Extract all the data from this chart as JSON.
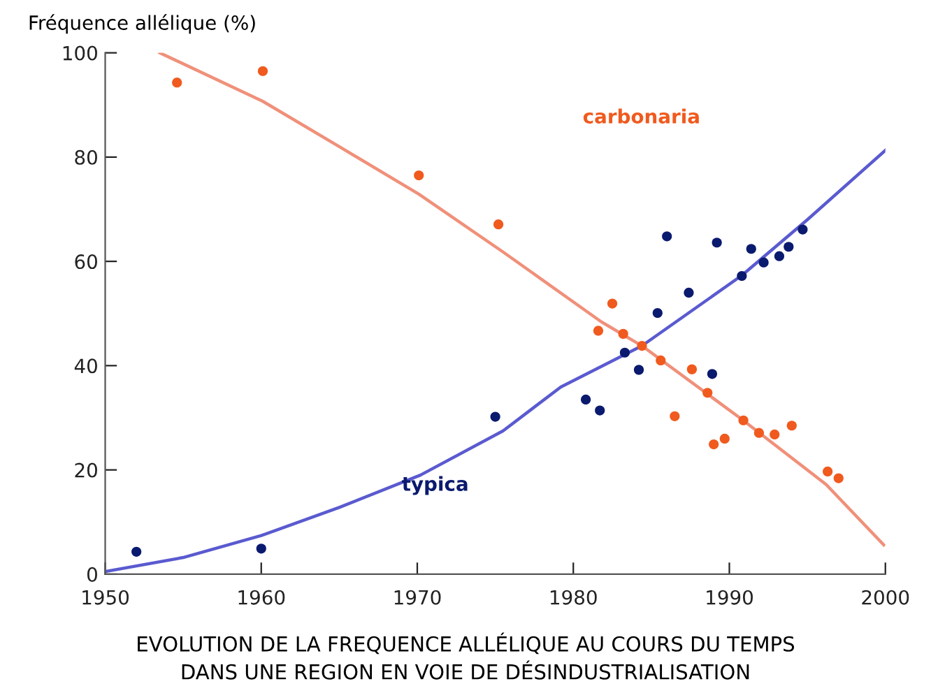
{
  "chart_data": {
    "type": "scatter",
    "title": "EVOLUTION DE LA FREQUENCE ALLÉLIQUE AU COURS DU TEMPS",
    "subtitle": "DANS UNE REGION EN VOIE DE DÉSINDUSTRIALISATION",
    "ylabel": "Fréquence allélique (%)",
    "xlim": [
      1950,
      2000
    ],
    "ylim": [
      0,
      100
    ],
    "xticks": [
      1950,
      1960,
      1970,
      1980,
      1990,
      2000
    ],
    "yticks": [
      0,
      20,
      40,
      60,
      80,
      100
    ],
    "grid": false,
    "legend": false,
    "series": [
      {
        "name": "carbonaria",
        "marker": "circle",
        "color": "#f05a1e",
        "x": [
          1954.6,
          1960.1,
          1970.1,
          1975.2,
          1981.6,
          1982.5,
          1983.2,
          1984.4,
          1985.6,
          1986.5,
          1987.6,
          1988.6,
          1989.0,
          1989.7,
          1990.9,
          1991.9,
          1992.9,
          1994.0,
          1996.3,
          1997.0
        ],
        "values": [
          94.3,
          96.5,
          76.5,
          67.1,
          46.7,
          51.9,
          46.1,
          43.8,
          41.0,
          30.3,
          39.3,
          34.8,
          24.9,
          26.0,
          29.5,
          27.1,
          26.8,
          28.5,
          19.7,
          18.4
        ]
      },
      {
        "name": "typica",
        "marker": "circle",
        "color": "#0a1a6e",
        "x": [
          1952.0,
          1960.0,
          1975.0,
          1980.8,
          1981.7,
          1983.3,
          1984.2,
          1985.4,
          1986.0,
          1987.4,
          1988.9,
          1989.2,
          1990.8,
          1991.4,
          1992.2,
          1993.2,
          1993.8,
          1994.7
        ],
        "values": [
          4.3,
          4.9,
          30.2,
          33.5,
          31.4,
          42.5,
          39.2,
          50.1,
          64.8,
          54.0,
          38.4,
          63.6,
          57.2,
          62.4,
          59.8,
          61.0,
          62.8,
          66.1
        ]
      },
      {
        "type": "line",
        "color": "#f0907a",
        "x": [
          1953.5,
          1960.1,
          1965,
          1970.1,
          1975.5,
          1981.8,
          1984.4,
          1990.8,
          1996.2,
          1999.9
        ],
        "values": [
          100,
          90.7,
          82,
          72.9,
          61.8,
          48.4,
          43.8,
          29.7,
          17.2,
          5.6
        ]
      },
      {
        "type": "line",
        "color": "#5a5ad0",
        "x": [
          1950,
          1955,
          1960,
          1965,
          1970.2,
          1975.5,
          1979.2,
          1984.4,
          1990.8,
          1995,
          2000
        ],
        "values": [
          0.5,
          3.2,
          7.4,
          12.8,
          19.0,
          27.5,
          35.9,
          43.8,
          57.3,
          68,
          81.3
        ]
      }
    ]
  }
}
